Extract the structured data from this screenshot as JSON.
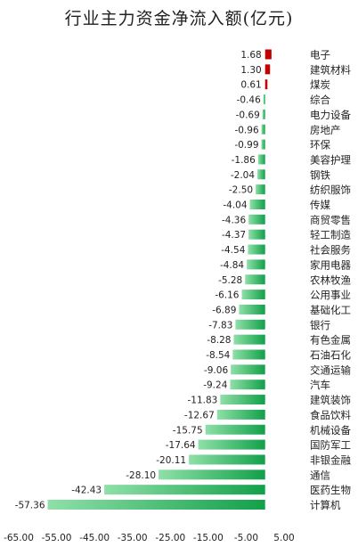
{
  "chart_data": {
    "type": "bar",
    "orientation": "horizontal",
    "title": "行业主力资金净流入额(亿元)",
    "categories": [
      "电子",
      "建筑材料",
      "煤炭",
      "综合",
      "电力设备",
      "房地产",
      "环保",
      "美容护理",
      "钢铁",
      "纺织服饰",
      "传媒",
      "商贸零售",
      "轻工制造",
      "社会服务",
      "家用电器",
      "农林牧渔",
      "公用事业",
      "基础化工",
      "银行",
      "有色金属",
      "石油石化",
      "交通运输",
      "汽车",
      "建筑装饰",
      "食品饮料",
      "机械设备",
      "国防军工",
      "非银金融",
      "通信",
      "医药生物",
      "计算机"
    ],
    "category_labels": [
      "电子",
      "建筑材料",
      "煤炭",
      "综合",
      "电力设备",
      "房地产",
      "环保",
      "美容护理",
      "钢铁",
      "纺织服饰",
      "传媒",
      "商贸零售",
      "轻工制造",
      "社会服务",
      "家用电器",
      "农林牧渔",
      "公用事业",
      "基础化工",
      "银行",
      "有色金属",
      "石油石化",
      "交通运输",
      "汽车",
      "建筑装饰",
      "食品饮料",
      "机械设备",
      "国防军工",
      "非银金融",
      "通信",
      "医药生物",
      "计算机"
    ],
    "values": [
      1.68,
      1.3,
      0.61,
      -0.46,
      -0.69,
      -0.96,
      -0.99,
      -1.86,
      -2.04,
      -2.5,
      -4.04,
      -4.36,
      -4.37,
      -4.54,
      -4.84,
      -5.28,
      -6.16,
      -6.89,
      -7.83,
      -8.28,
      -8.54,
      -9.06,
      -9.24,
      -11.83,
      -12.67,
      -15.75,
      -17.64,
      -20.11,
      -28.1,
      -42.43,
      -57.36
    ],
    "value_labels": [
      "1.68",
      "1.30",
      "0.61",
      "-0.46",
      "-0.69",
      "-0.96",
      "-0.99",
      "-1.86",
      "-2.04",
      "-2.50",
      "-4.04",
      "-4.36",
      "-4.37",
      "-4.54",
      "-4.84",
      "-5.28",
      "-6.16",
      "-6.89",
      "-7.83",
      "-8.28",
      "-8.54",
      "-9.06",
      "-9.24",
      "-11.83",
      "-12.67",
      "-15.75",
      "-17.64",
      "-20.11",
      "-28.10",
      "-42.43",
      "-57.36"
    ],
    "xlim": [
      -65,
      5
    ],
    "x_ticks": [
      -65,
      -55,
      -45,
      -35,
      -25,
      -15,
      -5,
      5
    ],
    "x_tick_labels": [
      "-65.00",
      "-55.00",
      "-45.00",
      "-35.00",
      "-25.00",
      "-15.00",
      "-5.00",
      "5.00"
    ],
    "grid": false,
    "colors": {
      "positive": "#c00000",
      "negative_light": "#8fe0a8",
      "negative_dark": "#12a04a"
    }
  }
}
